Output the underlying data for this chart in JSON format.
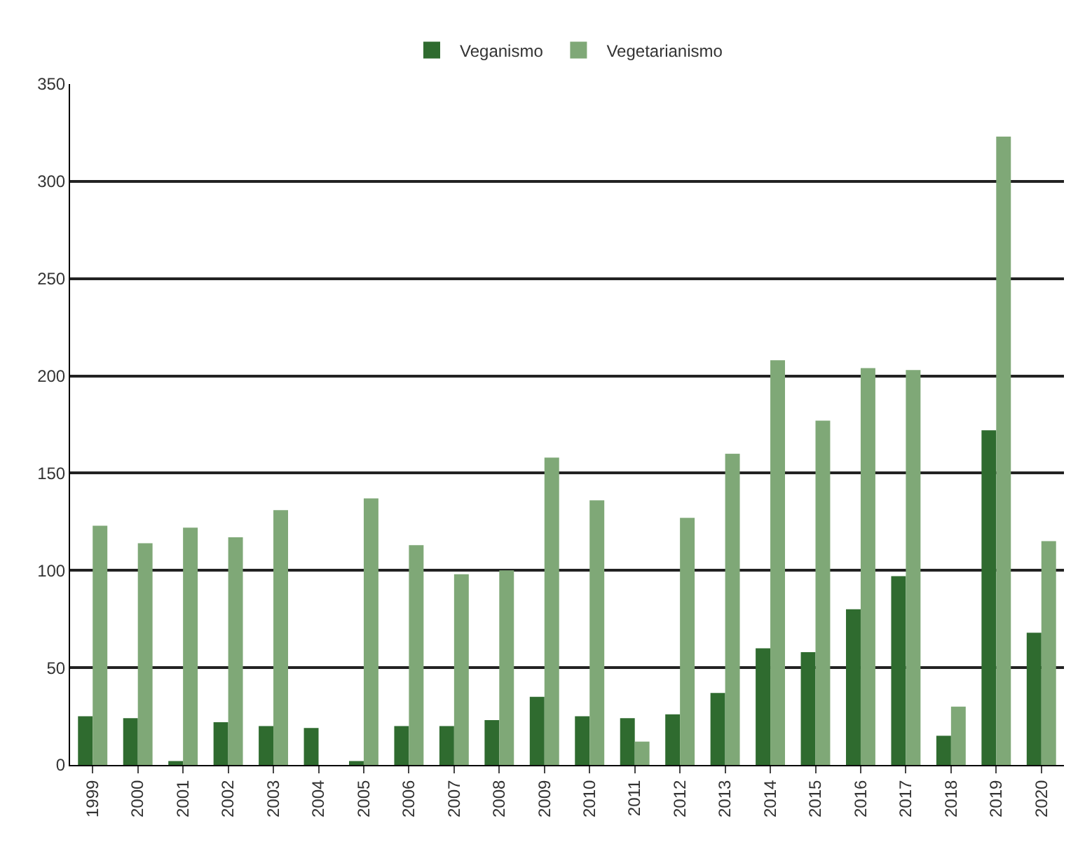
{
  "chart_data": {
    "type": "bar",
    "categories": [
      "1999",
      "2000",
      "2001",
      "2002",
      "2003",
      "2004",
      "2005",
      "2006",
      "2007",
      "2008",
      "2009",
      "2010",
      "2011",
      "2012",
      "2013",
      "2014",
      "2015",
      "2016",
      "2017",
      "2018",
      "2019",
      "2020"
    ],
    "series": [
      {
        "name": "Veganismo",
        "color": "#2f6b2f",
        "values": [
          25,
          24,
          2,
          22,
          20,
          19,
          2,
          20,
          20,
          23,
          35,
          25,
          24,
          26,
          37,
          60,
          58,
          80,
          97,
          15,
          172,
          68
        ]
      },
      {
        "name": "Vegetarianismo",
        "color": "#7fa877",
        "values": [
          123,
          114,
          122,
          117,
          131,
          0,
          137,
          113,
          98,
          100,
          158,
          136,
          12,
          127,
          160,
          208,
          177,
          204,
          203,
          30,
          323,
          115
        ]
      }
    ],
    "ylim": [
      0,
      350
    ],
    "yticks": [
      0,
      50,
      100,
      150,
      200,
      250,
      300,
      350
    ],
    "grid": "y",
    "legend": "top"
  }
}
